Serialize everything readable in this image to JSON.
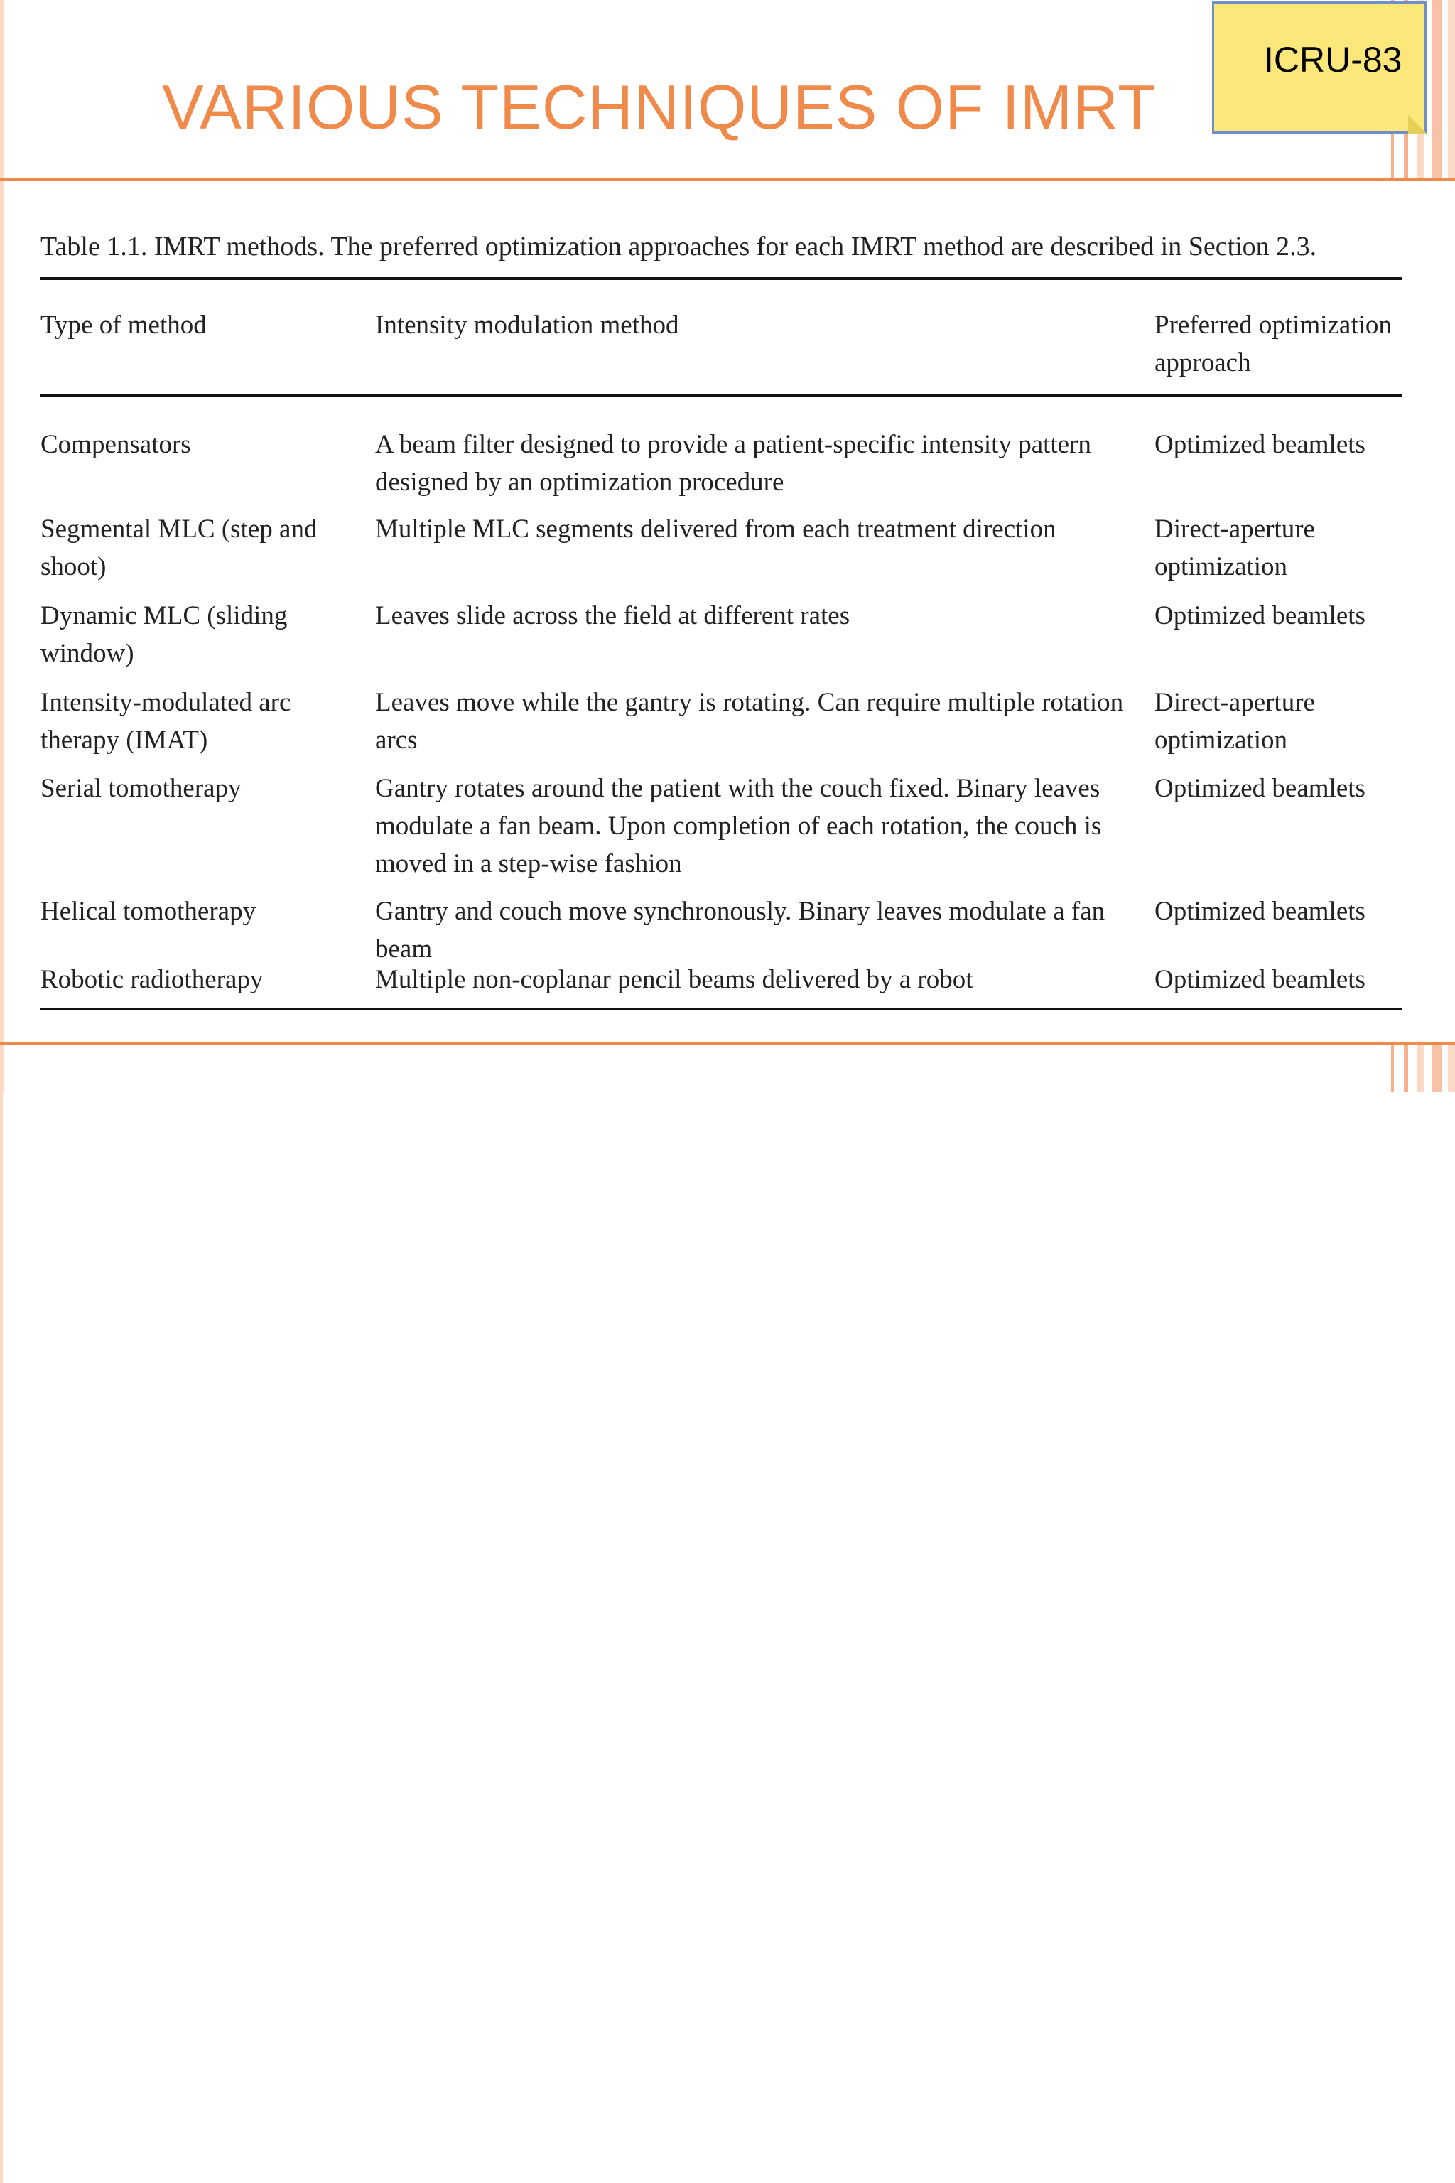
{
  "slide": {
    "title": "VARIOUS TECHNIQUES OF IMRT",
    "note_label": "ICRU-83",
    "accent_color": "#f08a4b",
    "note_color": "#fbe77a"
  },
  "table": {
    "caption": "Table 1.1. IMRT methods. The preferred optimization approaches for each IMRT method are described in Section 2.3.",
    "headers": {
      "type": "Type of method",
      "intensity": "Intensity modulation method",
      "optimization": "Preferred optimization approach"
    },
    "rows": [
      {
        "type": "Compensators",
        "intensity": "A beam filter designed to provide a patient-specific intensity pattern designed by an optimization procedure",
        "optimization": "Optimized beamlets"
      },
      {
        "type": "Segmental MLC (step and shoot)",
        "intensity": "Multiple MLC segments delivered from each treatment direction",
        "optimization": "Direct-aperture optimization"
      },
      {
        "type": "Dynamic MLC (sliding window)",
        "intensity": "Leaves slide across the field at different rates",
        "optimization": "Optimized beamlets"
      },
      {
        "type": "Intensity-modulated arc therapy (IMAT)",
        "intensity": "Leaves move while the gantry is rotating. Can require multiple rotation arcs",
        "optimization": "Direct-aperture optimization"
      },
      {
        "type": "Serial tomotherapy",
        "intensity": "Gantry rotates around the patient with the couch fixed. Binary leaves modulate a fan beam. Upon completion of each rotation, the couch is moved in a step-wise fashion",
        "optimization": "Optimized beamlets"
      },
      {
        "type": "Helical tomotherapy",
        "intensity": "Gantry and couch move synchronously. Binary leaves modulate a fan beam",
        "optimization": "Optimized beamlets"
      },
      {
        "type": "Robotic radiotherapy",
        "intensity": "Multiple non-coplanar pencil beams delivered by a robot",
        "optimization": "Optimized beamlets"
      }
    ]
  }
}
